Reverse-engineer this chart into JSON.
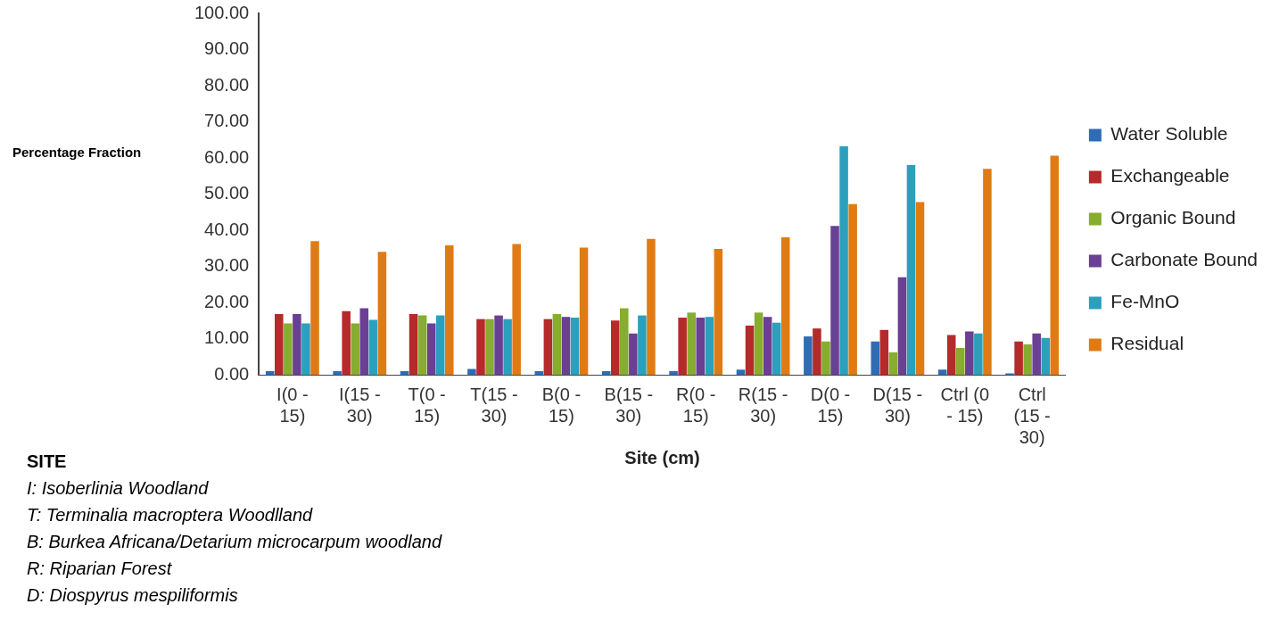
{
  "chart_data": {
    "type": "bar",
    "xlabel": "Site (cm)",
    "ylabel": "Percentage Fraction",
    "categories": [
      "I(0 - 15)",
      "I(15 - 30)",
      "T(0 - 15)",
      "T(15 - 30)",
      "B(0 - 15)",
      "B(15 - 30)",
      "R(0 - 15)",
      "R(15 - 30)",
      "D(0 - 15)",
      "D(15 - 30)",
      "Ctrl (0 - 15)",
      "Ctrl (15 - 30)"
    ],
    "series": [
      {
        "name": "Water Soluble",
        "color": "#2e6db4",
        "values": [
          1.0,
          1.0,
          1.0,
          1.6,
          1.0,
          1.0,
          1.0,
          1.4,
          10.6,
          9.2,
          1.4,
          0.4
        ]
      },
      {
        "name": "Exchangeable",
        "color": "#b52a2a",
        "values": [
          16.8,
          17.6,
          16.8,
          15.4,
          15.4,
          15.0,
          15.8,
          13.6,
          12.8,
          12.4,
          11.0,
          9.2
        ]
      },
      {
        "name": "Organic Bound",
        "color": "#86ad2f",
        "values": [
          14.2,
          14.2,
          16.4,
          15.4,
          16.8,
          18.4,
          17.2,
          17.2,
          9.2,
          6.2,
          7.4,
          8.4
        ]
      },
      {
        "name": "Carbonate Bound",
        "color": "#6a3f94",
        "values": [
          16.8,
          18.4,
          14.2,
          16.4,
          16.0,
          11.4,
          15.8,
          16.0,
          41.2,
          27.0,
          12.0,
          11.4
        ]
      },
      {
        "name": "Fe-MnO",
        "color": "#2aa0bd",
        "values": [
          14.2,
          15.2,
          16.4,
          15.4,
          15.8,
          16.4,
          16.0,
          14.4,
          63.2,
          58.0,
          11.4,
          10.2
        ]
      },
      {
        "name": "Residual",
        "color": "#e07b14",
        "values": [
          37.0,
          34.0,
          35.8,
          36.2,
          35.2,
          37.6,
          34.8,
          38.0,
          47.2,
          47.8,
          57.0,
          60.6
        ]
      }
    ],
    "ylim": [
      0,
      100
    ],
    "yticks": [
      {
        "value": 0,
        "label": "0.00"
      },
      {
        "value": 10,
        "label": "10.00"
      },
      {
        "value": 20,
        "label": "20.00"
      },
      {
        "value": 30,
        "label": "30.00"
      },
      {
        "value": 40,
        "label": "40.00"
      },
      {
        "value": 50,
        "label": "50.00"
      },
      {
        "value": 60,
        "label": "60.00"
      },
      {
        "value": 70,
        "label": "70.00"
      },
      {
        "value": 80,
        "label": "80.00"
      },
      {
        "value": 90,
        "label": "90.00"
      },
      {
        "value": 100,
        "label": "100.00"
      }
    ],
    "grid": false,
    "legend": "right",
    "annotations": [
      "SITE",
      "I: Isoberlinia Woodland",
      "T: Terminalia macroptera Woodlland",
      "B: Burkea Africana/Detarium microcarpum woodland",
      "R: Riparian Forest",
      "D: Diospyrus mespiliformis"
    ]
  }
}
